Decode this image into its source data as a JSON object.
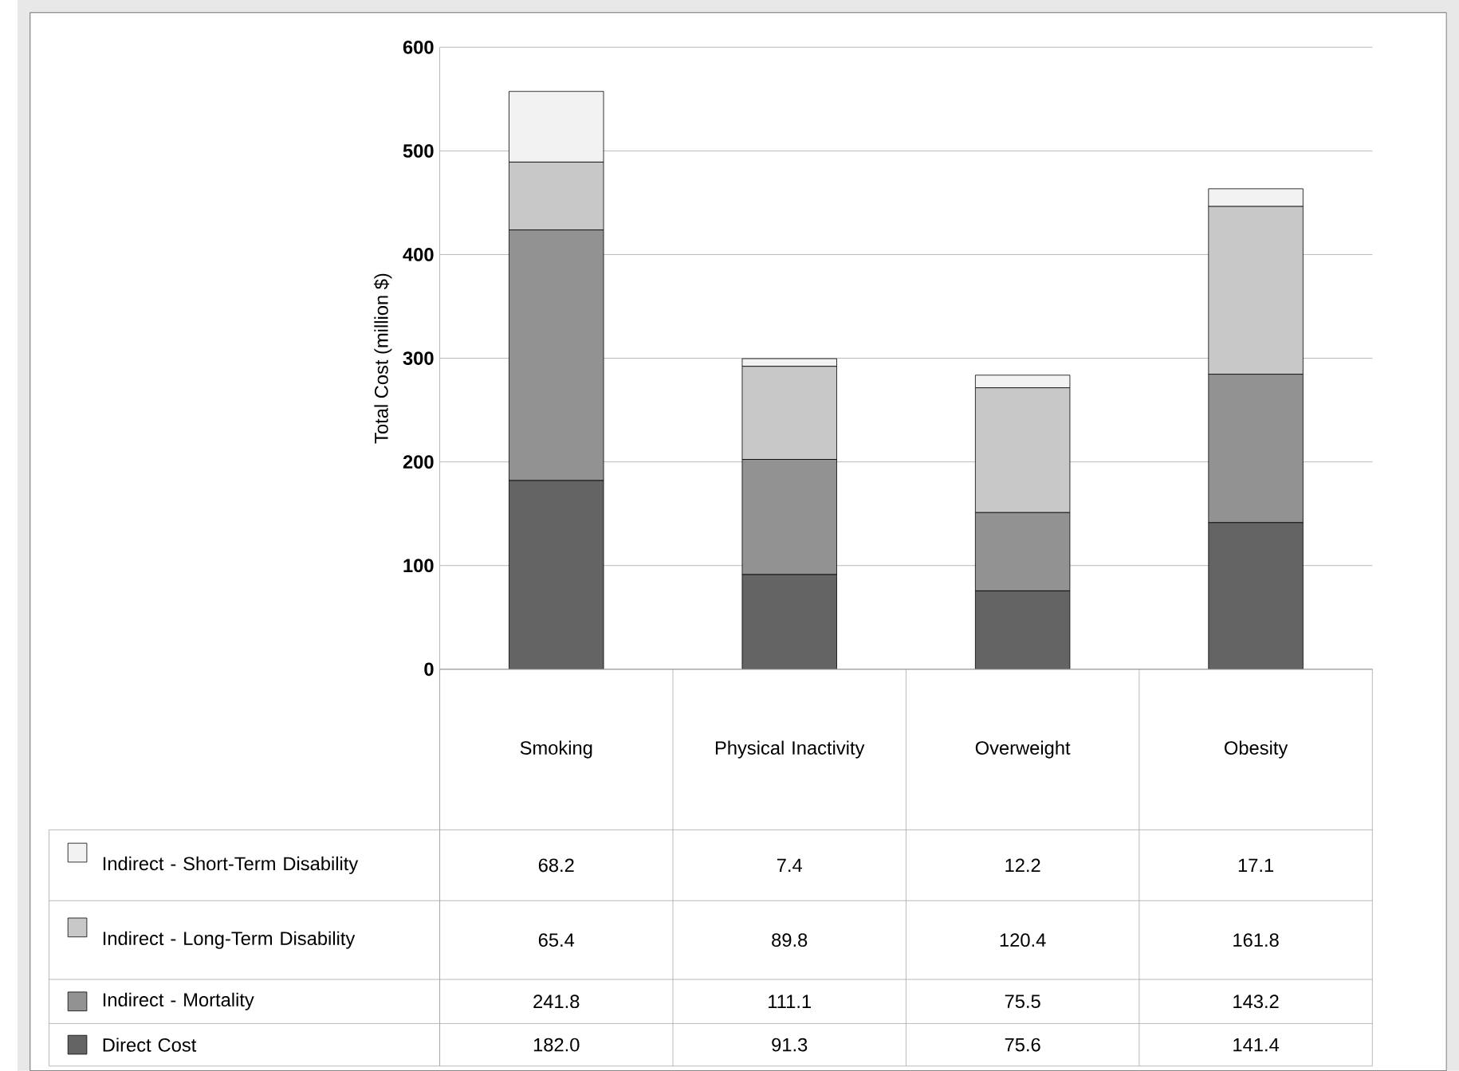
{
  "chart_data": {
    "type": "bar",
    "stacked": true,
    "ylabel": "Total Cost (million $)",
    "categories": [
      "Smoking",
      "Physical Inactivity",
      "Overweight",
      "Obesity"
    ],
    "ylim": [
      0,
      600
    ],
    "yticks": [
      0,
      100,
      200,
      300,
      400,
      500,
      600
    ],
    "grid": "y",
    "legend": "bottom",
    "series": [
      {
        "name": "Direct Cost",
        "color": "#646464",
        "values": [
          182.0,
          91.3,
          75.6,
          141.4
        ],
        "value_labels": [
          "182.0",
          "91.3",
          "75.6",
          "141.4"
        ]
      },
      {
        "name": "Indirect - Mortality",
        "color": "#929292",
        "values": [
          241.8,
          111.1,
          75.5,
          143.2
        ],
        "value_labels": [
          "241.8",
          "111.1",
          "75.5",
          "143.2"
        ]
      },
      {
        "name": "Indirect - Long-Term Disability",
        "color": "#c8c8c8",
        "values": [
          65.4,
          89.8,
          120.4,
          161.8
        ],
        "value_labels": [
          "65.4",
          "89.8",
          "120.4",
          "161.8"
        ]
      },
      {
        "name": "Indirect - Short-Term Disability",
        "color": "#f2f2f2",
        "values": [
          68.2,
          7.4,
          12.2,
          17.1
        ],
        "value_labels": [
          "68.2",
          "7.4",
          "12.2",
          "17.1"
        ]
      }
    ]
  }
}
